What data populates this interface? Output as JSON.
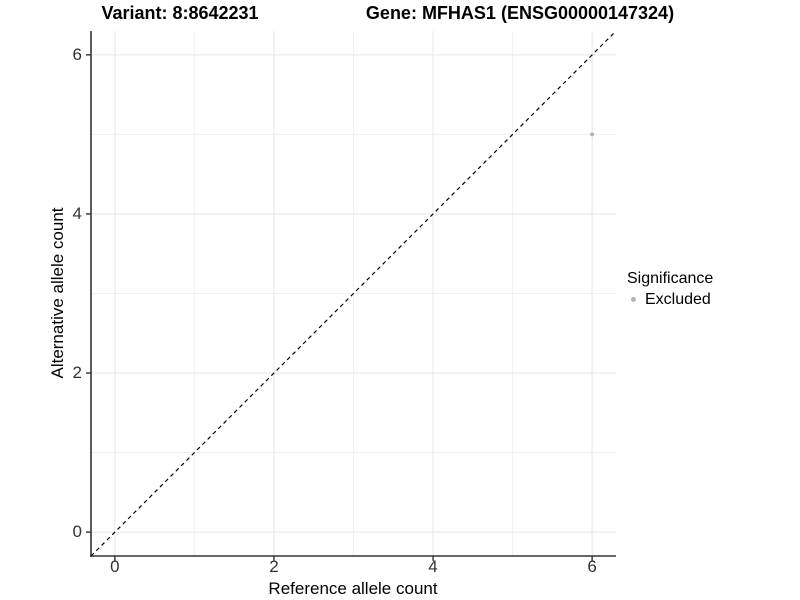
{
  "chart_data": {
    "type": "scatter",
    "title_left": "Variant: 8:8642231",
    "title_right": "Gene: MFHAS1 (ENSG00000147324)",
    "xlabel": "Reference allele count",
    "ylabel": "Alternative allele count",
    "xlim": [
      -0.3,
      6.3
    ],
    "ylim": [
      -0.3,
      6.3
    ],
    "x_major_ticks": [
      0,
      2,
      4,
      6
    ],
    "y_major_ticks": [
      0,
      2,
      4,
      6
    ],
    "x_minor_ticks": [
      1,
      3,
      5
    ],
    "y_minor_ticks": [
      1,
      3,
      5
    ],
    "grid": "major+minor",
    "points": [
      {
        "x": 6,
        "y": 5,
        "series": "Excluded"
      }
    ],
    "reference_line": {
      "type": "identity",
      "slope": 1,
      "intercept": 0,
      "style": "dashed"
    },
    "legend": {
      "title": "Significance",
      "position": "right",
      "entries": [
        {
          "label": "Excluded",
          "color": "#b4b4b4"
        }
      ]
    }
  },
  "colors": {
    "background": "#ffffff",
    "point": "#b4b4b4",
    "axis_line": "#333333",
    "tick_text": "#333333",
    "grid_major": "#e6e6e6",
    "grid_minor": "#f1f1f1",
    "dashed_line": "#000000"
  }
}
